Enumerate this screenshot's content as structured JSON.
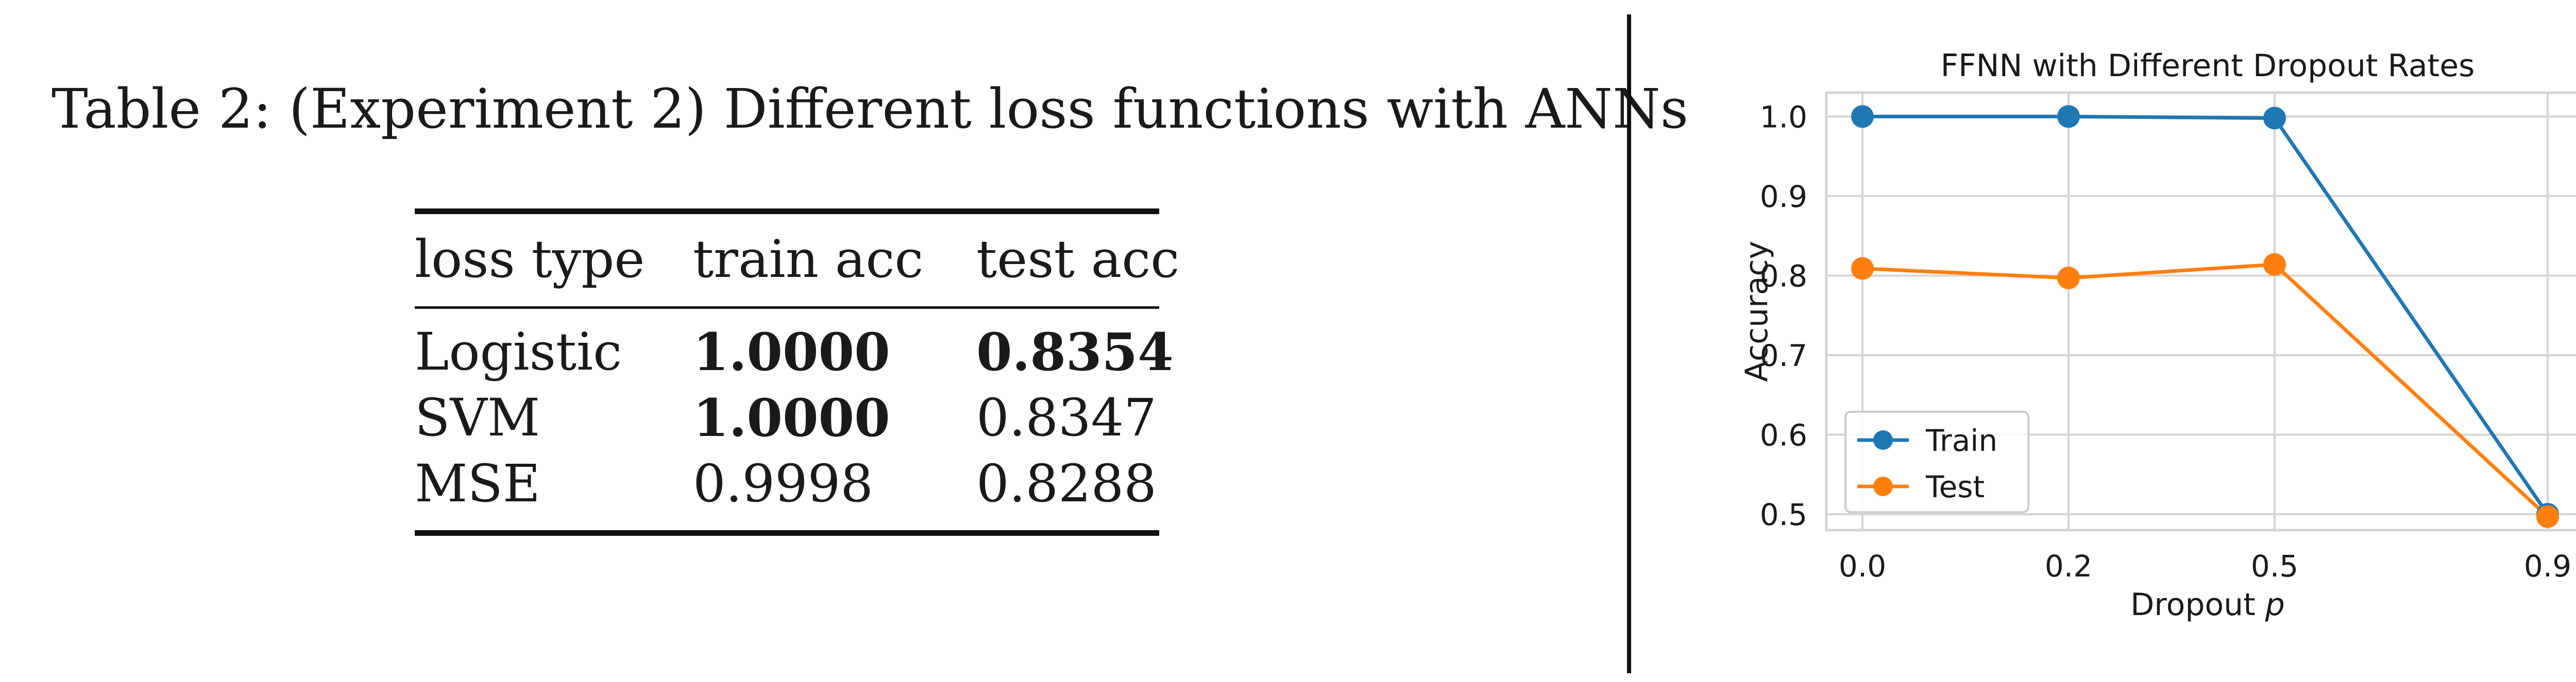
{
  "table": {
    "caption": "Table 2: (Experiment 2) Different loss functions with ANNs",
    "headers": [
      "loss type",
      "train acc",
      "test acc"
    ],
    "rows": [
      {
        "cells": [
          "Logistic",
          "1.0000",
          "0.8354"
        ],
        "bold": [
          false,
          true,
          true
        ]
      },
      {
        "cells": [
          "SVM",
          "1.0000",
          "0.8347"
        ],
        "bold": [
          false,
          true,
          false
        ]
      },
      {
        "cells": [
          "MSE",
          "0.9998",
          "0.8288"
        ],
        "bold": [
          false,
          false,
          false
        ]
      }
    ]
  },
  "chart_data": {
    "type": "line",
    "title": "FFNN with Different Dropout Rates",
    "xlabel_prefix": "Dropout ",
    "xlabel_var": "p",
    "ylabel": "Accuracy",
    "categories": [
      "0.0",
      "0.2",
      "0.5",
      "0.9"
    ],
    "yticks": [
      "0.5",
      "0.6",
      "0.7",
      "0.8",
      "0.9",
      "1.0"
    ],
    "ytick_values": [
      0.5,
      0.6,
      0.7,
      0.8,
      0.9,
      1.0
    ],
    "ylim": [
      0.48,
      1.03
    ],
    "grid": true,
    "legend_position": "lower-left",
    "series": [
      {
        "name": "Train",
        "color": "#1f77b4",
        "values": [
          1.0,
          1.0,
          0.998,
          0.5
        ]
      },
      {
        "name": "Test",
        "color": "#ff7f0e",
        "values": [
          0.809,
          0.797,
          0.814,
          0.497
        ]
      }
    ]
  }
}
